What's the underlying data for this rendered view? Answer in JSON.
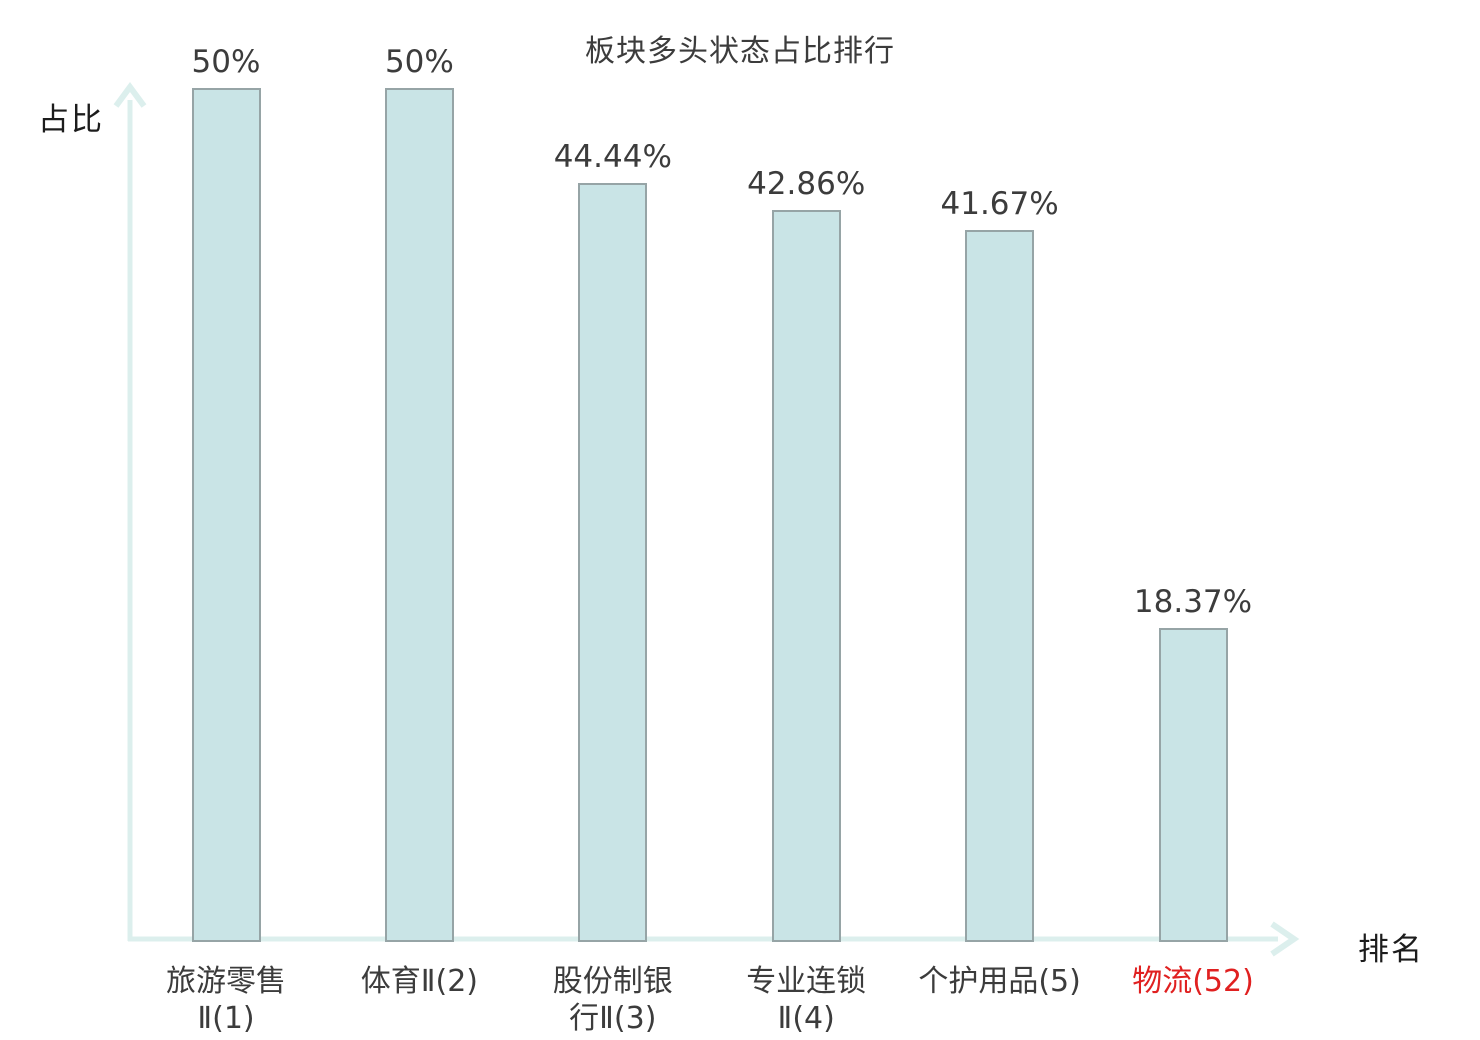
{
  "chart_data": {
    "type": "bar",
    "title": "板块多头状态占比排行",
    "xlabel": "排名",
    "ylabel": "占比",
    "categories": [
      "旅游零售Ⅱ(1)",
      "体育Ⅱ(2)",
      "股份制银行Ⅱ(3)",
      "专业连锁Ⅱ(4)",
      "个护用品(5)",
      "物流(52)"
    ],
    "category_lines": [
      [
        "旅游零售",
        "Ⅱ(1)"
      ],
      [
        "体育Ⅱ(2)"
      ],
      [
        "股份制银",
        "行Ⅱ(3)"
      ],
      [
        "专业连锁",
        "Ⅱ(4)"
      ],
      [
        "个护用品(5)"
      ],
      [
        "物流(52)"
      ]
    ],
    "values": [
      50,
      50,
      44.44,
      42.86,
      41.67,
      18.37
    ],
    "value_labels": [
      "50%",
      "50%",
      "44.44%",
      "42.86%",
      "41.67%",
      "18.37%"
    ],
    "highlight_index": 5,
    "ylim": [
      0,
      50
    ],
    "legend": null,
    "grid": false,
    "colors": {
      "bar_fill": "#c9e4e6",
      "bar_border": "#96a4a6",
      "axis": "#dcefed",
      "text": "#3c3c3c",
      "highlight_text": "#e02020"
    }
  }
}
